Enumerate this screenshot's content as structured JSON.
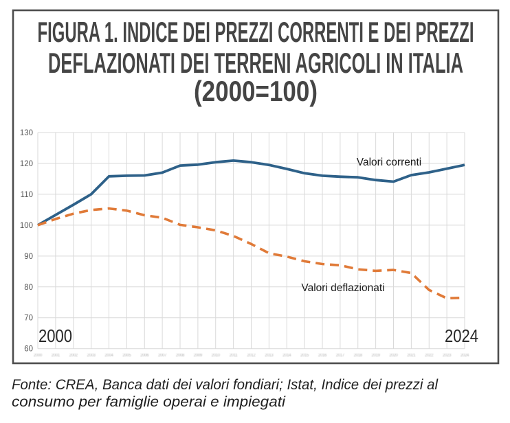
{
  "figure": {
    "title_lines": [
      "FIGURA 1. INDICE DEI PREZZI CORRENTI E DEI PREZZI",
      "DEFLAZIONATI DEI TERRENI AGRICOLI IN ITALIA",
      "(2000=100)"
    ],
    "caption_lines": [
      "Fonte: CREA, Banca dati dei valori fondiari; Istat, Indice dei prezzi al",
      "consumo per famiglie operai e impiegati"
    ]
  },
  "chart_data": {
    "type": "line",
    "title": "FIGURA 1. INDICE DEI PREZZI CORRENTI E DEI PREZZI DEFLAZIONATI DEI TERRENI AGRICOLI IN ITALIA (2000=100)",
    "x": [
      2000,
      2001,
      2002,
      2003,
      2004,
      2005,
      2006,
      2007,
      2008,
      2009,
      2010,
      2011,
      2012,
      2013,
      2014,
      2015,
      2016,
      2017,
      2018,
      2019,
      2020,
      2021,
      2022,
      2023,
      2024
    ],
    "series": [
      {
        "name": "Valori correnti",
        "style": "solid",
        "color": "#2E6189",
        "values": [
          100,
          103.3,
          106.6,
          110,
          115.8,
          116,
          116.1,
          117,
          119.3,
          119.6,
          120.4,
          120.9,
          120.4,
          119.5,
          118.2,
          116.8,
          116,
          115.7,
          115.5,
          114.6,
          114.1,
          116.2,
          117.1,
          118.3,
          119.5
        ]
      },
      {
        "name": "Valori deflazionati",
        "style": "dashed",
        "color": "#E07A38",
        "values": [
          100,
          102,
          103.7,
          104.9,
          105.4,
          104.7,
          103.2,
          102.4,
          100.1,
          99.3,
          98.3,
          96.5,
          93.9,
          90.9,
          89.8,
          88.3,
          87.4,
          87,
          85.7,
          85.2,
          85.5,
          84.5,
          79,
          76.3,
          76.5
        ]
      }
    ],
    "xlabel_left": "2000",
    "xlabel_right": "2024",
    "y_ticks": [
      130,
      120,
      110,
      100,
      90,
      80,
      70,
      60
    ],
    "ylim": [
      60,
      130
    ],
    "xlim": [
      2000,
      2024
    ],
    "grid": true,
    "legend": "inline-labels",
    "colors": {
      "grid": "#D9D9D9",
      "axis_text": "#595959",
      "border": "#4D4D4D",
      "title_text": "#454545"
    }
  }
}
